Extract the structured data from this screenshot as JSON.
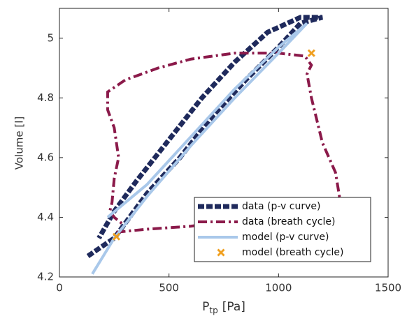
{
  "chart_data": {
    "type": "line",
    "xlabel": [
      "P",
      "tp",
      "[Pa]"
    ],
    "ylabel": "Volume [l]",
    "xlim": [
      0,
      1500
    ],
    "xticks": [
      0,
      500,
      1000,
      1500
    ],
    "ylim": [
      4.2,
      5.1
    ],
    "yticks": [
      4.2,
      4.4,
      4.6,
      4.8,
      5
    ],
    "grid": false,
    "legend": "lower right",
    "series": [
      {
        "name": "data (p-v curve)",
        "color": "#1f2a5c",
        "style": "dashed",
        "x": [
          130,
          250,
          400,
          550,
          700,
          850,
          1000,
          1100,
          1200,
          1100,
          950,
          800,
          650,
          500,
          350,
          250,
          180
        ],
        "values": [
          4.27,
          4.33,
          4.48,
          4.6,
          4.74,
          4.86,
          4.97,
          5.05,
          5.07,
          5.07,
          5.02,
          4.92,
          4.8,
          4.66,
          4.52,
          4.42,
          4.33
        ]
      },
      {
        "name": "data (breath cycle)",
        "color": "#8b1a4a",
        "style": "dashdot",
        "x": [
          260,
          400,
          600,
          800,
          1000,
          1200,
          1280,
          1260,
          1200,
          1150,
          1130,
          1150,
          1120,
          1000,
          800,
          600,
          450,
          300,
          220,
          220,
          250,
          270,
          250,
          240,
          230,
          250,
          300
        ],
        "values": [
          4.35,
          4.36,
          4.37,
          4.39,
          4.4,
          4.42,
          4.46,
          4.55,
          4.65,
          4.8,
          4.88,
          4.91,
          4.94,
          4.95,
          4.95,
          4.93,
          4.9,
          4.86,
          4.82,
          4.76,
          4.7,
          4.6,
          4.53,
          4.45,
          4.42,
          4.4,
          4.37
        ]
      },
      {
        "name": "model (p-v curve)",
        "color": "#a9c8ea",
        "style": "solid",
        "x": [
          150,
          250,
          400,
          600,
          800,
          1000,
          1130,
          1000,
          800,
          600,
          400,
          220
        ],
        "values": [
          4.21,
          4.33,
          4.47,
          4.64,
          4.8,
          4.95,
          5.05,
          4.97,
          4.83,
          4.67,
          4.51,
          4.4
        ]
      },
      {
        "name": "model (breath cycle)",
        "color": "#f0a020",
        "style": "marker",
        "x": [
          260,
          1150
        ],
        "values": [
          4.335,
          4.95
        ]
      }
    ]
  }
}
